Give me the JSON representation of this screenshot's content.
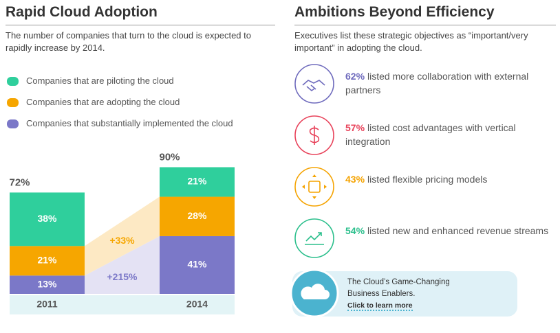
{
  "left": {
    "title": "Rapid Cloud Adoption",
    "subtitle": "The number of companies that turn to the cloud is expected to rapidly increase by 2014."
  },
  "chart_data": {
    "type": "bar",
    "stacked": true,
    "categories": [
      "2011",
      "2014"
    ],
    "series": [
      {
        "name": "Companies that substantially implemented the cloud",
        "color": "#7b78c8",
        "link_color": "#e4e2f4",
        "values": [
          13,
          41
        ],
        "value_labels": [
          "13%",
          "41%"
        ],
        "change_label": "+215%"
      },
      {
        "name": "Companies that are adopting the cloud",
        "color": "#f6a600",
        "link_color": "#fde9c4",
        "values": [
          21,
          28
        ],
        "value_labels": [
          "21%",
          "28%"
        ],
        "change_label": "+33%"
      },
      {
        "name": "Companies that are piloting the cloud",
        "color": "#2fcf9c",
        "values": [
          38,
          21
        ],
        "value_labels": [
          "38%",
          "21%"
        ]
      }
    ],
    "totals": [
      72,
      90
    ],
    "total_labels": [
      "72%",
      "90%"
    ]
  },
  "right": {
    "title": "Ambitions Beyond Efficiency",
    "subtitle": "Executives list these strategic objectives as “important/very important” in adopting the cloud.",
    "items": [
      {
        "percent": "62%",
        "text": "listed more collaboration with external partners",
        "color": "#6f6bbd"
      },
      {
        "percent": "57%",
        "text": "listed cost advantages with vertical integration",
        "color": "#e8435b"
      },
      {
        "percent": "43%",
        "text": "listed flexible pricing models",
        "color": "#f5a300"
      },
      {
        "percent": "54%",
        "text": "listed new and enhanced revenue streams",
        "color": "#2bbf8c"
      }
    ],
    "cta": {
      "text": "The Cloud’s Game-Changing Business Enablers.",
      "link": "Click to learn more"
    }
  }
}
